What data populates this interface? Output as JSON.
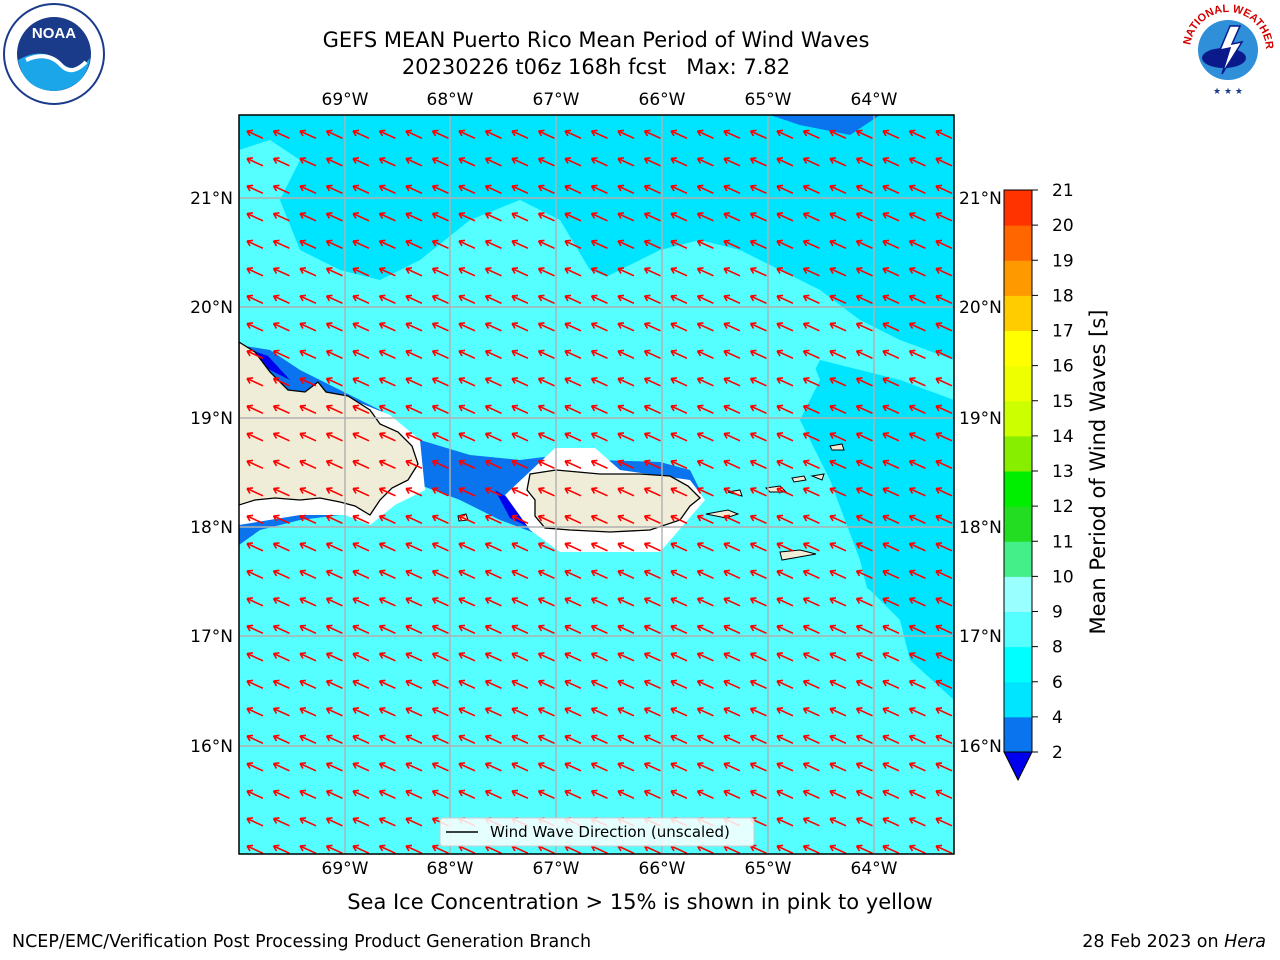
{
  "header": {
    "title_line1": "GEFS MEAN Puerto Rico Mean Period of Wind Waves",
    "title_line2": "20230226 t06z 168h fcst   Max: 7.82"
  },
  "logos": {
    "left": {
      "name": "NOAA",
      "ring_text": "NATIONAL OCEANIC AND ATMOSPHERIC ADMINISTRATION · U.S. DEPARTMENT OF COMMERCE"
    },
    "right": {
      "name": "NATIONAL WEATHER SERVICE"
    }
  },
  "chart_data": {
    "type": "heatmap",
    "variable": "Mean Period of Wind Waves",
    "units": "s",
    "colorbar_label": "Mean Period of Wind Waves [s]",
    "colorbar_ticks": [
      2,
      4,
      6,
      8,
      9,
      10,
      11,
      12,
      13,
      14,
      15,
      16,
      17,
      18,
      19,
      20,
      21
    ],
    "colorbar_colors": [
      "#0000ee",
      "#0a73ee",
      "#00e5ff",
      "#00ffff",
      "#55ffff",
      "#99ffff",
      "#44ee88",
      "#22dd22",
      "#00ee00",
      "#88ee00",
      "#ccff00",
      "#eeff00",
      "#ffff00",
      "#ffcc00",
      "#ff9900",
      "#ff6600",
      "#ff3300",
      "#ff0000"
    ],
    "colorbar_extend": "min",
    "lon_ticks": [
      "69°W",
      "68°W",
      "67°W",
      "66°W",
      "65°W",
      "64°W"
    ],
    "lat_ticks": [
      "21°N",
      "20°N",
      "19°N",
      "18°N",
      "17°N",
      "16°N"
    ],
    "lon_range": [
      -70.0,
      -63.3
    ],
    "lat_range": [
      15.0,
      21.75
    ],
    "grid": true,
    "max_value": 7.82,
    "legend": {
      "label": "Wind Wave Direction (unscaled)",
      "placement": "lower-center"
    },
    "vector_color": "#ff0000",
    "arrow_direction": "toward west-northwest"
  },
  "footer": {
    "caption": "Sea Ice Concentration > 15% is shown in pink to yellow",
    "left": "NCEP/EMC/Verification Post Processing Product Generation Branch",
    "right_date": "28 Feb 2023 on ",
    "right_host": "Hera"
  }
}
